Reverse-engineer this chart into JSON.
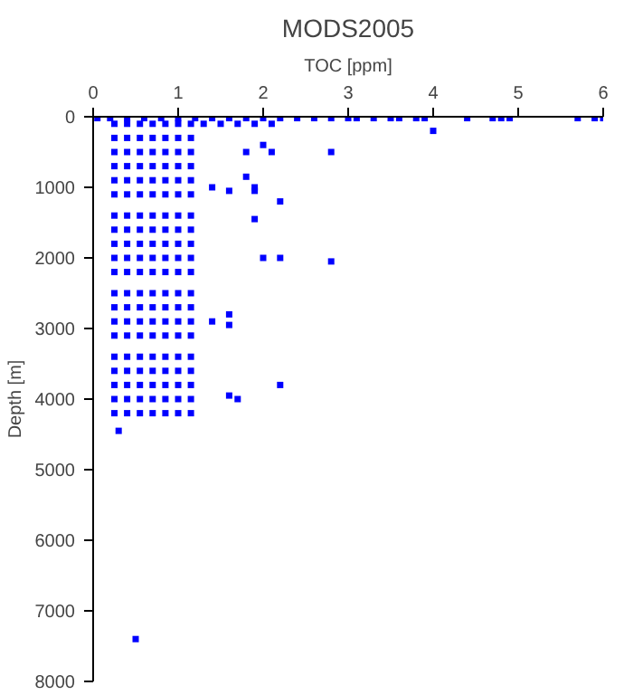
{
  "chart_data": {
    "type": "scatter",
    "title": "MODS2005",
    "xlabel": "TOC [ppm]",
    "ylabel": "Depth [m]",
    "xlim": [
      0,
      6
    ],
    "xticks": [
      0,
      1,
      2,
      3,
      4,
      5,
      6
    ],
    "ylim": [
      8000,
      0
    ],
    "yticks": [
      0,
      1000,
      2000,
      3000,
      4000,
      5000,
      6000,
      7000,
      8000
    ],
    "grid": false,
    "marker": "square",
    "series": [
      {
        "color": "#0000ff",
        "x": [
          0.25,
          0.4,
          0.55,
          0.7,
          0.85,
          1.0,
          1.15,
          0.25,
          0.4,
          0.55,
          0.7,
          0.85,
          1.0,
          1.15,
          0.25,
          0.4,
          0.55,
          0.7,
          0.85,
          1.0,
          1.15,
          0.25,
          0.4,
          0.55,
          0.7,
          0.85,
          1.0,
          1.15,
          0.25,
          0.4,
          0.55,
          0.7,
          0.85,
          1.0,
          1.15,
          0.25,
          0.4,
          0.55,
          0.7,
          0.85,
          1.0,
          1.15,
          0.25,
          0.4,
          0.55,
          0.7,
          0.85,
          1.0,
          1.15,
          0.25,
          0.4,
          0.55,
          0.7,
          0.85,
          1.0,
          1.15,
          0.25,
          0.4,
          0.55,
          0.7,
          0.85,
          1.0,
          1.15,
          0.25,
          0.4,
          0.55,
          0.7,
          0.85,
          1.0,
          1.15,
          0.25,
          0.4,
          0.55,
          0.7,
          0.85,
          1.0,
          1.15,
          0.25,
          0.4,
          0.55,
          0.7,
          0.85,
          1.0,
          1.15,
          0.25,
          0.4,
          0.55,
          0.7,
          0.85,
          1.0,
          1.15,
          0.25,
          0.4,
          0.55,
          0.7,
          0.85,
          1.0,
          1.15,
          0.25,
          0.4,
          0.55,
          0.7,
          0.85,
          1.0,
          1.15,
          0.25,
          0.4,
          0.55,
          0.7,
          0.85,
          1.0,
          1.15,
          0.25,
          0.4,
          0.55,
          0.7,
          0.85,
          1.0,
          1.15,
          0.25,
          0.4,
          0.55,
          0.7,
          0.85,
          1.0,
          1.15,
          0.25,
          0.4,
          0.55,
          0.7,
          0.85,
          1.0,
          1.15,
          0.25,
          0.4,
          0.55,
          0.7,
          0.85,
          1.0,
          1.15,
          0.05,
          0.2,
          0.4,
          0.6,
          0.8,
          1.0,
          1.2,
          1.4,
          1.6,
          1.8,
          2.0,
          2.2,
          2.4,
          2.6,
          2.8,
          3.0,
          3.1,
          3.3,
          3.5,
          3.6,
          3.8,
          3.9,
          4.4,
          4.7,
          4.8,
          4.9,
          5.7,
          5.9,
          6.0,
          1.3,
          1.5,
          1.7,
          1.9,
          2.1,
          4.0,
          1.8,
          2.0,
          2.1,
          2.8,
          1.8,
          1.9,
          1.9,
          1.4,
          1.6,
          2.2,
          1.9,
          2.0,
          2.2,
          2.8,
          1.4,
          1.6,
          1.6,
          2.2,
          1.6,
          1.7,
          0.3,
          0.5
        ],
        "values": [
          100,
          100,
          100,
          100,
          100,
          100,
          100,
          300,
          300,
          300,
          300,
          300,
          300,
          300,
          500,
          500,
          500,
          500,
          500,
          500,
          500,
          700,
          700,
          700,
          700,
          700,
          700,
          700,
          900,
          900,
          900,
          900,
          900,
          900,
          900,
          1100,
          1100,
          1100,
          1100,
          1100,
          1100,
          1100,
          1400,
          1400,
          1400,
          1400,
          1400,
          1400,
          1400,
          1600,
          1600,
          1600,
          1600,
          1600,
          1600,
          1600,
          1800,
          1800,
          1800,
          1800,
          1800,
          1800,
          1800,
          2000,
          2000,
          2000,
          2000,
          2000,
          2000,
          2000,
          2200,
          2200,
          2200,
          2200,
          2200,
          2200,
          2200,
          2500,
          2500,
          2500,
          2500,
          2500,
          2500,
          2500,
          2700,
          2700,
          2700,
          2700,
          2700,
          2700,
          2700,
          2900,
          2900,
          2900,
          2900,
          2900,
          2900,
          2900,
          3100,
          3100,
          3100,
          3100,
          3100,
          3100,
          3100,
          3400,
          3400,
          3400,
          3400,
          3400,
          3400,
          3400,
          3600,
          3600,
          3600,
          3600,
          3600,
          3600,
          3600,
          3800,
          3800,
          3800,
          3800,
          3800,
          3800,
          3800,
          4000,
          4000,
          4000,
          4000,
          4000,
          4000,
          4000,
          4200,
          4200,
          4200,
          4200,
          4200,
          4200,
          4200,
          20,
          20,
          20,
          20,
          20,
          20,
          20,
          20,
          20,
          20,
          20,
          20,
          20,
          20,
          20,
          20,
          20,
          20,
          20,
          20,
          20,
          20,
          20,
          20,
          20,
          20,
          20,
          20,
          20,
          100,
          100,
          100,
          100,
          100,
          200,
          500,
          400,
          500,
          500,
          850,
          1000,
          1050,
          1000,
          1050,
          1200,
          1450,
          2000,
          2000,
          2050,
          2900,
          2800,
          2950,
          3800,
          3950,
          4000,
          4450,
          7400
        ]
      }
    ]
  }
}
